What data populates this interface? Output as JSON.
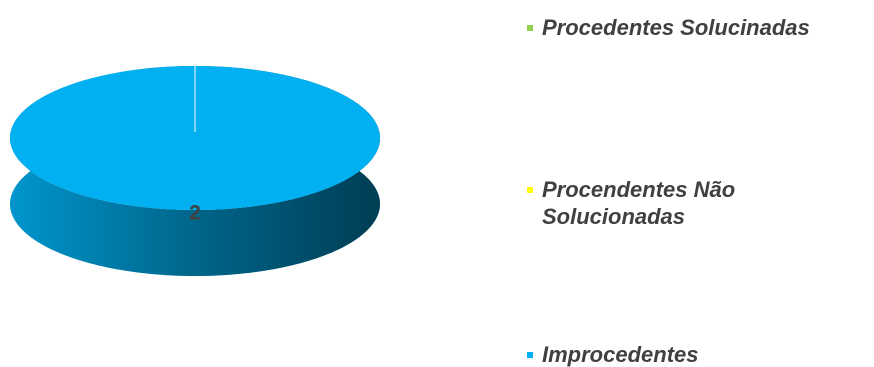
{
  "chart_data": {
    "type": "pie",
    "categories": [
      "Procedentes Solucinadas",
      "Procendentes Não Solucionadas",
      "Improcedentes"
    ],
    "values": [
      0,
      0,
      2
    ],
    "colors": [
      "#92d050",
      "#ffff00",
      "#00b0f0"
    ],
    "legend": "right"
  }
}
